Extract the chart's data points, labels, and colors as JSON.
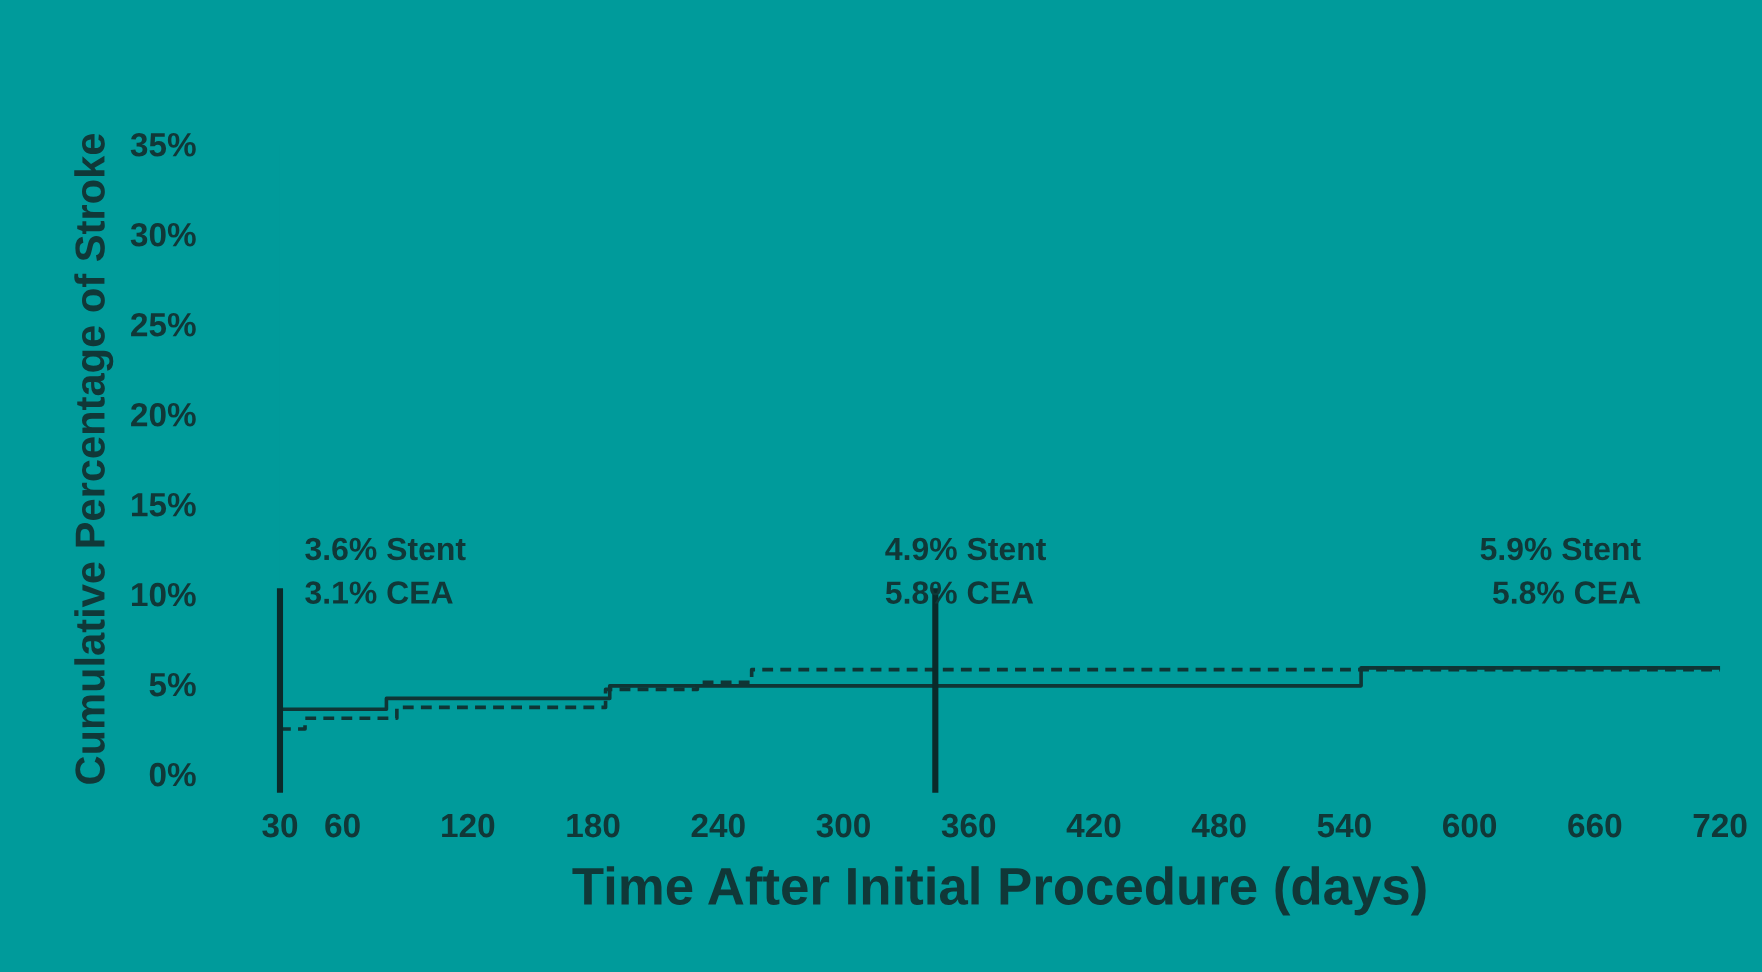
{
  "chart_data": {
    "type": "step",
    "ylabel": "Cumulative Percentage of Stroke",
    "xlabel": "Time After Initial Procedure (days)",
    "xlim": [
      30,
      720
    ],
    "ylim": [
      0,
      35
    ],
    "xticks": [
      30,
      60,
      120,
      180,
      240,
      300,
      360,
      420,
      480,
      540,
      600,
      660,
      720
    ],
    "yticks": [
      {
        "value": 0,
        "label": "0%"
      },
      {
        "value": 5,
        "label": "5%"
      },
      {
        "value": 10,
        "label": "10%"
      },
      {
        "value": 15,
        "label": "15%"
      },
      {
        "value": 20,
        "label": "20%"
      },
      {
        "value": 25,
        "label": "25%"
      },
      {
        "value": 30,
        "label": "30%"
      },
      {
        "value": 35,
        "label": "35%"
      }
    ],
    "grid": false,
    "series": [
      {
        "color": "#0f3535",
        "line_style": "solid",
        "x": [
          30,
          81,
          188,
          548,
          720
        ],
        "values": [
          3.6,
          4.2,
          4.9,
          5.9,
          5.9
        ]
      },
      {
        "color": "#0f3535",
        "line_style": "dashed",
        "x": [
          30,
          42,
          86,
          186,
          230,
          256,
          720
        ],
        "values": [
          2.5,
          3.1,
          3.7,
          4.7,
          5.1,
          5.8,
          5.8
        ]
      }
    ],
    "ref_lines": [
      {
        "axis": "x",
        "value": 30,
        "color": "#0a2a2a"
      },
      {
        "axis": "x",
        "value": 344,
        "color": "#0a2a2a"
      }
    ],
    "annotations": [
      "3.6% Stent\n3.1% CEA",
      "4.9% Stent\n5.8% CEA",
      "5.9% Stent\n5.8% CEA"
    ]
  }
}
